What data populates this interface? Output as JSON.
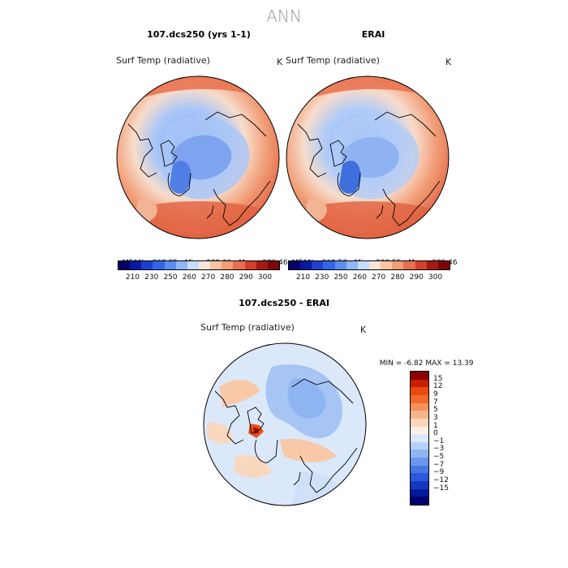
{
  "title": "ANN",
  "panels": [
    {
      "name": "107.dcs250 (yrs 1-1)",
      "variable": "Surf Temp (radiative)",
      "units": "K",
      "stats": {
        "mean_label": "MEAN=",
        "mean": "268.85",
        "min_label": "Min=",
        "min": "239.36",
        "max_label": "Max=",
        "max": "286.46"
      }
    },
    {
      "name": "ERAI",
      "variable": "Surf Temp (radiative)",
      "units": "K",
      "stats": {
        "mean_label": "MEAN=",
        "mean": "269.53",
        "min_label": "Min=",
        "min": "238.55",
        "max_label": "Max=",
        "max": "286.46"
      }
    }
  ],
  "colorbar_top": {
    "colors": [
      "#08006a",
      "#0a1aa0",
      "#1d3fd0",
      "#3366e6",
      "#5b8ef0",
      "#8fb6f5",
      "#c7dcfa",
      "#f9e6d8",
      "#f7c4a4",
      "#f29c78",
      "#e8704f",
      "#d2402c",
      "#a51a12",
      "#7a0606"
    ],
    "ticks": [
      "210",
      "230",
      "250",
      "260",
      "270",
      "280",
      "290",
      "300"
    ]
  },
  "difference": {
    "name": "107.dcs250 - ERAI",
    "variable": "Surf Temp (radiative)",
    "units": "K",
    "min_label": "MIN =",
    "min": "-6.82",
    "max_label": "MAX =",
    "max": "13.39"
  },
  "colorbar_diff": {
    "colors": [
      "#8b0000",
      "#c81e00",
      "#e84a10",
      "#f06a2a",
      "#f4905a",
      "#f7b48a",
      "#fbd6bd",
      "#fdf1e6",
      "#dbe8fa",
      "#b6d0f7",
      "#8fb4f2",
      "#6a96ec",
      "#4477e4",
      "#2a58d8",
      "#1438c0",
      "#06189c",
      "#000070"
    ],
    "ticks": [
      "15",
      "12",
      "9",
      "7",
      "5",
      "3",
      "1",
      "0",
      "−1",
      "−3",
      "−5",
      "−7",
      "−9",
      "−12",
      "−15"
    ]
  }
}
